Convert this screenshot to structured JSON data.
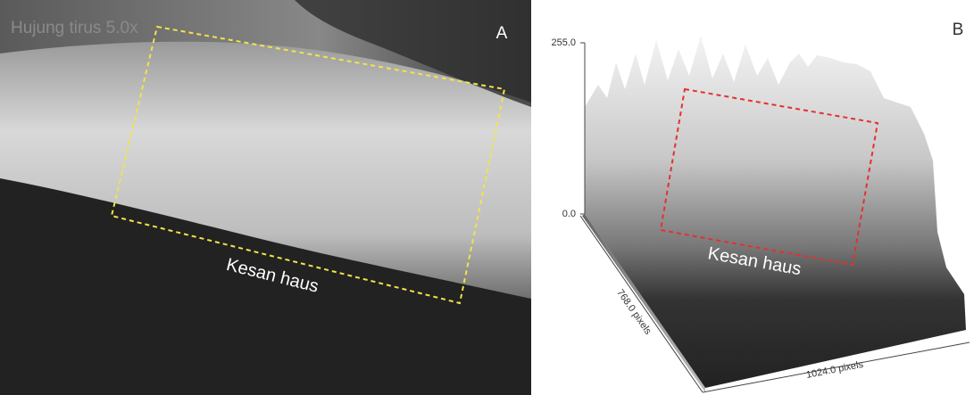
{
  "panel_a": {
    "title": "Hujung tirus 5.0x",
    "letter": "A",
    "annotation": "Kesan haus"
  },
  "panel_b": {
    "letter": "B",
    "axis_top": "255.0",
    "axis_bottom": "0.0",
    "depth_axis": "768.0 pixels",
    "width_axis": "1024.0 pixels",
    "annotation": "Kesan haus"
  }
}
